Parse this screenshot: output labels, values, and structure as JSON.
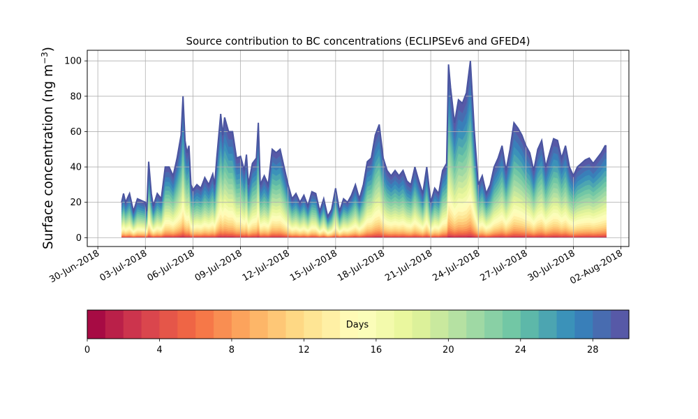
{
  "chart_data": {
    "type": "area",
    "title": "Source contribution to BC concentrations (ECLIPSEv6 and GFED4)",
    "ylabel": "Surface concentration (ng m",
    "ylabel_sup": "−3",
    "ylabel_close": ")",
    "xlabel": "",
    "ylim": [
      -5,
      106
    ],
    "xlim": [
      "2018-06-29T08:00",
      "2018-08-02T12:00"
    ],
    "grid": true,
    "y_ticks": [
      0,
      20,
      40,
      60,
      80,
      100
    ],
    "x_ticks": [
      {
        "date": "2018-06-30",
        "label": "30-Jun-2018"
      },
      {
        "date": "2018-07-03",
        "label": "03-Jul-2018"
      },
      {
        "date": "2018-07-06",
        "label": "06-Jul-2018"
      },
      {
        "date": "2018-07-09",
        "label": "09-Jul-2018"
      },
      {
        "date": "2018-07-12",
        "label": "12-Jul-2018"
      },
      {
        "date": "2018-07-15",
        "label": "15-Jul-2018"
      },
      {
        "date": "2018-07-18",
        "label": "18-Jul-2018"
      },
      {
        "date": "2018-07-21",
        "label": "21-Jul-2018"
      },
      {
        "date": "2018-07-24",
        "label": "24-Jul-2018"
      },
      {
        "date": "2018-07-27",
        "label": "27-Jul-2018"
      },
      {
        "date": "2018-07-30",
        "label": "30-Jul-2018"
      },
      {
        "date": "2018-08-02",
        "label": "02-Aug-2018"
      }
    ],
    "total": [
      [
        "2018-07-01T12:00",
        20
      ],
      [
        "2018-07-01T15:00",
        25
      ],
      [
        "2018-07-01T18:00",
        20
      ],
      [
        "2018-07-02T00:00",
        25
      ],
      [
        "2018-07-02T06:00",
        15
      ],
      [
        "2018-07-02T12:00",
        22
      ],
      [
        "2018-07-03T00:00",
        20
      ],
      [
        "2018-07-03T02:00",
        15
      ],
      [
        "2018-07-03T05:00",
        43
      ],
      [
        "2018-07-03T09:00",
        25
      ],
      [
        "2018-07-03T12:00",
        18
      ],
      [
        "2018-07-03T18:00",
        25
      ],
      [
        "2018-07-04T00:00",
        22
      ],
      [
        "2018-07-04T06:00",
        40
      ],
      [
        "2018-07-04T12:00",
        40
      ],
      [
        "2018-07-04T18:00",
        35
      ],
      [
        "2018-07-05T00:00",
        45
      ],
      [
        "2018-07-05T06:00",
        58
      ],
      [
        "2018-07-05T09:00",
        80
      ],
      [
        "2018-07-05T12:00",
        55
      ],
      [
        "2018-07-05T15:00",
        48
      ],
      [
        "2018-07-05T18:00",
        52
      ],
      [
        "2018-07-05T21:00",
        30
      ],
      [
        "2018-07-06T00:00",
        27
      ],
      [
        "2018-07-06T06:00",
        30
      ],
      [
        "2018-07-06T12:00",
        28
      ],
      [
        "2018-07-06T18:00",
        34
      ],
      [
        "2018-07-07T00:00",
        30
      ],
      [
        "2018-07-07T06:00",
        36
      ],
      [
        "2018-07-07T09:00",
        30
      ],
      [
        "2018-07-07T12:00",
        45
      ],
      [
        "2018-07-07T18:00",
        70
      ],
      [
        "2018-07-07T21:00",
        58
      ],
      [
        "2018-07-08T00:00",
        68
      ],
      [
        "2018-07-08T06:00",
        60
      ],
      [
        "2018-07-08T12:00",
        60
      ],
      [
        "2018-07-08T18:00",
        45
      ],
      [
        "2018-07-09T00:00",
        46
      ],
      [
        "2018-07-09T06:00",
        38
      ],
      [
        "2018-07-09T09:00",
        47
      ],
      [
        "2018-07-09T12:00",
        30
      ],
      [
        "2018-07-09T18:00",
        42
      ],
      [
        "2018-07-10T00:00",
        45
      ],
      [
        "2018-07-10T03:00",
        65
      ],
      [
        "2018-07-10T06:00",
        30
      ],
      [
        "2018-07-10T12:00",
        35
      ],
      [
        "2018-07-10T18:00",
        30
      ],
      [
        "2018-07-11T00:00",
        50
      ],
      [
        "2018-07-11T06:00",
        48
      ],
      [
        "2018-07-11T12:00",
        50
      ],
      [
        "2018-07-11T18:00",
        40
      ],
      [
        "2018-07-12T00:00",
        30
      ],
      [
        "2018-07-12T06:00",
        22
      ],
      [
        "2018-07-12T12:00",
        25
      ],
      [
        "2018-07-12T18:00",
        20
      ],
      [
        "2018-07-13T00:00",
        24
      ],
      [
        "2018-07-13T06:00",
        18
      ],
      [
        "2018-07-13T12:00",
        26
      ],
      [
        "2018-07-13T18:00",
        25
      ],
      [
        "2018-07-14T00:00",
        15
      ],
      [
        "2018-07-14T06:00",
        22
      ],
      [
        "2018-07-14T12:00",
        12
      ],
      [
        "2018-07-14T18:00",
        16
      ],
      [
        "2018-07-15T00:00",
        28
      ],
      [
        "2018-07-15T06:00",
        15
      ],
      [
        "2018-07-15T12:00",
        22
      ],
      [
        "2018-07-15T18:00",
        20
      ],
      [
        "2018-07-16T00:00",
        24
      ],
      [
        "2018-07-16T06:00",
        30
      ],
      [
        "2018-07-16T12:00",
        22
      ],
      [
        "2018-07-16T18:00",
        30
      ],
      [
        "2018-07-17T00:00",
        43
      ],
      [
        "2018-07-17T06:00",
        45
      ],
      [
        "2018-07-17T12:00",
        58
      ],
      [
        "2018-07-17T18:00",
        64
      ],
      [
        "2018-07-18T00:00",
        45
      ],
      [
        "2018-07-18T06:00",
        38
      ],
      [
        "2018-07-18T12:00",
        35
      ],
      [
        "2018-07-18T18:00",
        38
      ],
      [
        "2018-07-19T00:00",
        35
      ],
      [
        "2018-07-19T06:00",
        38
      ],
      [
        "2018-07-19T12:00",
        32
      ],
      [
        "2018-07-19T18:00",
        30
      ],
      [
        "2018-07-20T00:00",
        40
      ],
      [
        "2018-07-20T06:00",
        32
      ],
      [
        "2018-07-20T12:00",
        25
      ],
      [
        "2018-07-20T18:00",
        40
      ],
      [
        "2018-07-21T00:00",
        20
      ],
      [
        "2018-07-21T06:00",
        28
      ],
      [
        "2018-07-21T12:00",
        25
      ],
      [
        "2018-07-21T18:00",
        38
      ],
      [
        "2018-07-22T00:00",
        42
      ],
      [
        "2018-07-22T03:00",
        98
      ],
      [
        "2018-07-22T06:00",
        85
      ],
      [
        "2018-07-22T12:00",
        65
      ],
      [
        "2018-07-22T18:00",
        78
      ],
      [
        "2018-07-23T00:00",
        76
      ],
      [
        "2018-07-23T06:00",
        82
      ],
      [
        "2018-07-23T12:00",
        100
      ],
      [
        "2018-07-23T18:00",
        60
      ],
      [
        "2018-07-24T00:00",
        30
      ],
      [
        "2018-07-24T06:00",
        35
      ],
      [
        "2018-07-24T12:00",
        25
      ],
      [
        "2018-07-24T18:00",
        30
      ],
      [
        "2018-07-25T00:00",
        40
      ],
      [
        "2018-07-25T06:00",
        45
      ],
      [
        "2018-07-25T12:00",
        52
      ],
      [
        "2018-07-25T18:00",
        38
      ],
      [
        "2018-07-26T00:00",
        50
      ],
      [
        "2018-07-26T06:00",
        65
      ],
      [
        "2018-07-26T12:00",
        62
      ],
      [
        "2018-07-26T18:00",
        58
      ],
      [
        "2018-07-27T00:00",
        52
      ],
      [
        "2018-07-27T06:00",
        48
      ],
      [
        "2018-07-27T12:00",
        38
      ],
      [
        "2018-07-27T18:00",
        50
      ],
      [
        "2018-07-28T00:00",
        55
      ],
      [
        "2018-07-28T06:00",
        40
      ],
      [
        "2018-07-28T12:00",
        48
      ],
      [
        "2018-07-28T18:00",
        56
      ],
      [
        "2018-07-29T00:00",
        55
      ],
      [
        "2018-07-29T06:00",
        45
      ],
      [
        "2018-07-29T12:00",
        52
      ],
      [
        "2018-07-29T18:00",
        40
      ],
      [
        "2018-07-30T00:00",
        35
      ],
      [
        "2018-07-30T06:00",
        40
      ],
      [
        "2018-07-30T12:00",
        42
      ],
      [
        "2018-07-30T18:00",
        44
      ],
      [
        "2018-07-31T00:00",
        45
      ],
      [
        "2018-07-31T06:00",
        42
      ],
      [
        "2018-07-31T12:00",
        45
      ],
      [
        "2018-07-31T18:00",
        48
      ],
      [
        "2018-08-01T00:00",
        52
      ],
      [
        "2018-08-01T02:00",
        52
      ]
    ],
    "colorbar": {
      "label": "Days",
      "range": [
        0,
        30
      ],
      "ticks": [
        0,
        4,
        8,
        12,
        16,
        20,
        24,
        28
      ],
      "levels": 30,
      "colormap": "Spectral",
      "colors": [
        "#9e0142",
        "#d53e4f",
        "#f46d43",
        "#fdae61",
        "#fee08b",
        "#ffffbf",
        "#e6f598",
        "#abdda4",
        "#66c2a5",
        "#3288bd",
        "#5e4fa2"
      ]
    }
  }
}
